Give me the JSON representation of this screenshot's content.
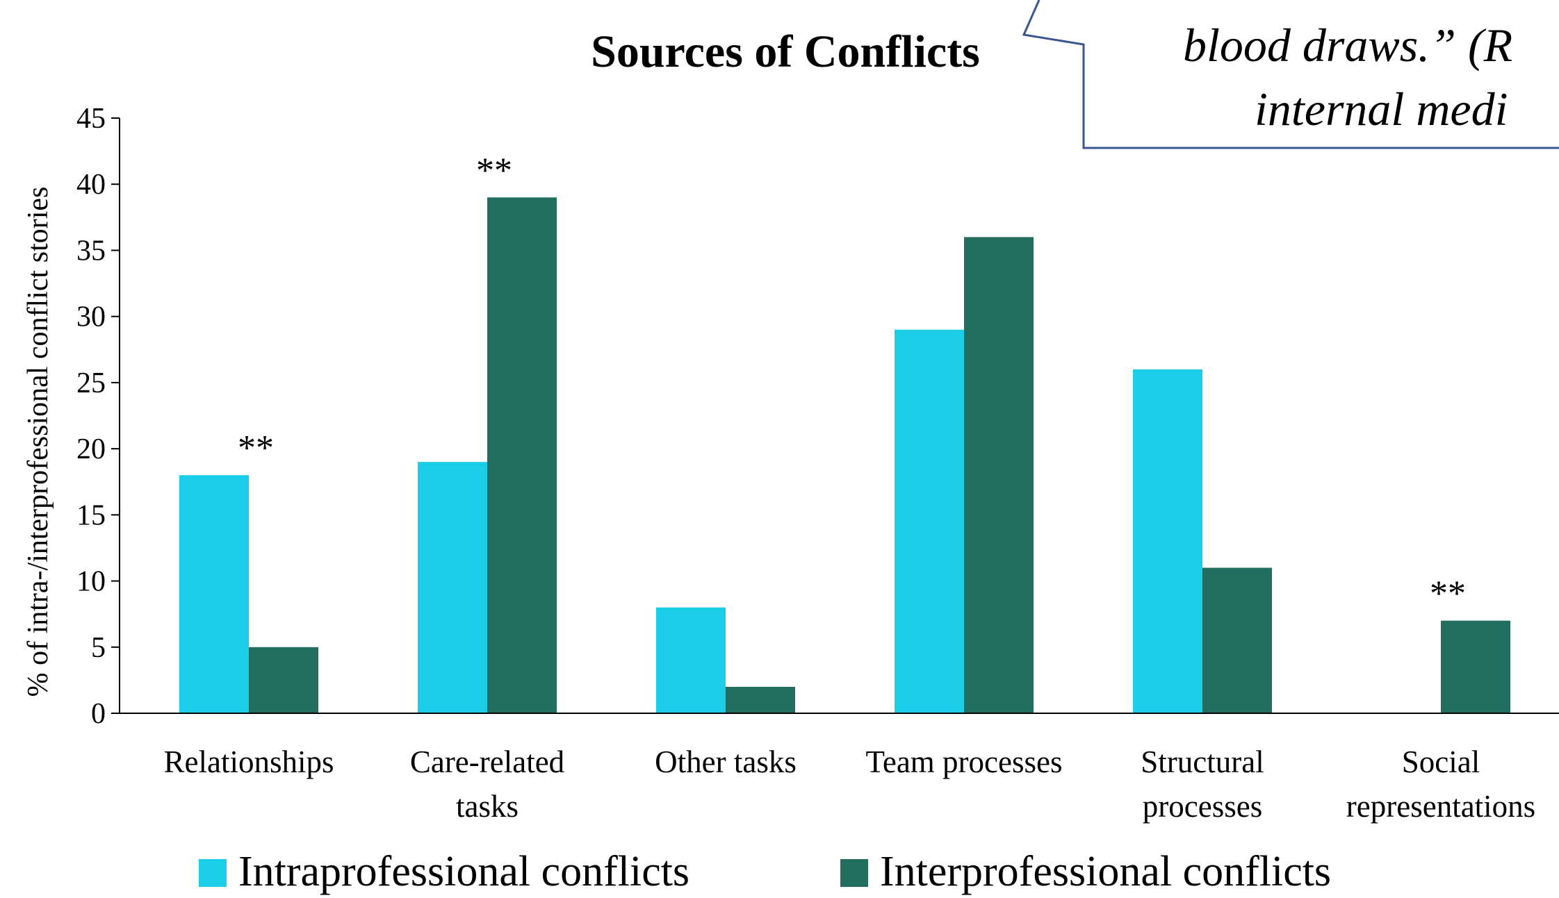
{
  "chart_data": {
    "type": "bar",
    "title": "Sources of Conflicts",
    "y_label": "% of intra-/interprofessional conflict stories",
    "categories": [
      "Relationships",
      "Care-related\ntasks",
      "Other tasks",
      "Team processes",
      "Structural\nprocesses",
      "Social\nrepresentations"
    ],
    "series": [
      {
        "name": "Intraprofessional conflicts",
        "color": "#1bcde6",
        "values": [
          18,
          19,
          8,
          29,
          26,
          0
        ]
      },
      {
        "name": "Interprofessional conflicts",
        "color": "#216e60",
        "values": [
          5,
          39,
          2,
          36,
          11,
          7
        ]
      }
    ],
    "ylim": [
      0,
      45
    ],
    "yticks": [
      0,
      5,
      10,
      15,
      20,
      25,
      30,
      35,
      40,
      45
    ],
    "annotations": [
      {
        "category": 0,
        "text": "**"
      },
      {
        "category": 1,
        "text": "**"
      },
      {
        "category": 5,
        "text": "**"
      }
    ],
    "callout": [
      "blood draws.” (R",
      "internal medi"
    ]
  }
}
